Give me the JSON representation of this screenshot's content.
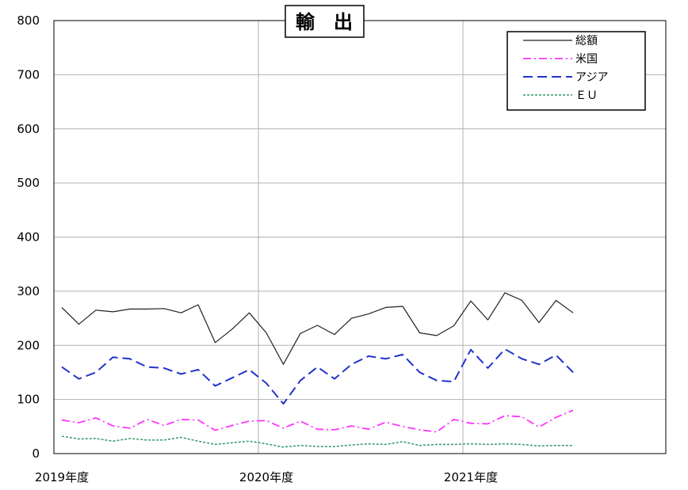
{
  "chart_data": {
    "type": "line",
    "title": "輸　出",
    "xlabel": "",
    "ylabel": "",
    "ylim": [
      0,
      800
    ],
    "yticks": [
      "0",
      "100",
      "200",
      "300",
      "400",
      "500",
      "600",
      "700",
      "800"
    ],
    "xtick_labels": [
      {
        "label": "2019年度",
        "index": 0
      },
      {
        "label": "2020年度",
        "index": 12
      },
      {
        "label": "2021年度",
        "index": 24
      }
    ],
    "x_count": 36,
    "grid": true,
    "legend_position": "top-right",
    "series": [
      {
        "name": "総額",
        "color": "#222222",
        "dash": "solid",
        "values": [
          270,
          239,
          265,
          262,
          267,
          267,
          268,
          260,
          275,
          205,
          230,
          260,
          223,
          165,
          222,
          237,
          220,
          250,
          258,
          270,
          272,
          223,
          218,
          236,
          282,
          247,
          297,
          283,
          242,
          283,
          260
        ]
      },
      {
        "name": "米国",
        "color": "#ff33ff",
        "dash": "dashdot",
        "values": [
          62,
          57,
          66,
          51,
          47,
          63,
          52,
          63,
          62,
          43,
          52,
          60,
          61,
          47,
          60,
          45,
          44,
          51,
          45,
          58,
          50,
          44,
          40,
          63,
          56,
          55,
          70,
          68,
          49,
          67,
          80
        ]
      },
      {
        "name": "アジア",
        "color": "#2233cc",
        "dash": "dash",
        "values": [
          160,
          138,
          150,
          178,
          175,
          160,
          158,
          147,
          155,
          125,
          140,
          155,
          130,
          92,
          135,
          160,
          138,
          165,
          180,
          175,
          183,
          150,
          135,
          133,
          192,
          158,
          193,
          175,
          165,
          182,
          150
        ]
      },
      {
        "name": "ＥＵ",
        "color": "#339966",
        "dash": "dot",
        "values": [
          32,
          27,
          28,
          23,
          28,
          25,
          25,
          30,
          23,
          17,
          20,
          23,
          18,
          12,
          15,
          13,
          13,
          16,
          18,
          17,
          22,
          15,
          17,
          17,
          18,
          17,
          18,
          17,
          14,
          15,
          15
        ]
      }
    ]
  }
}
